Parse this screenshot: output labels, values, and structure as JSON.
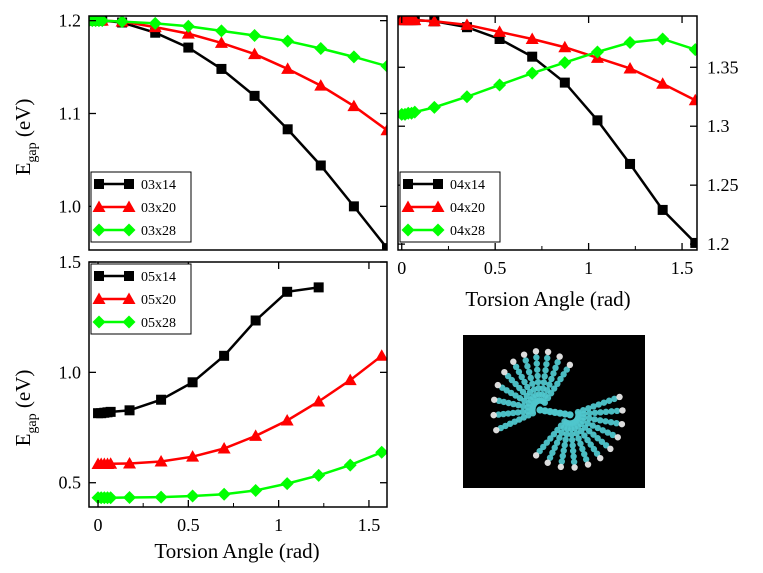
{
  "chart_data": [
    {
      "id": "p1",
      "type": "line",
      "ylabel": {
        "main": "E",
        "sub": "gap",
        "unit": " (eV)"
      },
      "xlabel": "",
      "xlim": [
        0,
        1.5708
      ],
      "ylim": [
        0.953,
        1.205
      ],
      "xticks": [],
      "yticks": [
        {
          "v": 1.0,
          "t": "1.0"
        },
        {
          "v": 1.1,
          "t": "1.1"
        },
        {
          "v": 1.2,
          "t": "1.2"
        }
      ],
      "legend_position": "bottom-left",
      "series": [
        {
          "name": "03x14",
          "color": "#000000",
          "marker": "square",
          "x": [
            0,
            0.0175,
            0.0349,
            0.0524,
            0.0698,
            0.1745,
            0.3491,
            0.5236,
            0.6981,
            0.8727,
            1.0472,
            1.2217,
            1.3963,
            1.5708
          ],
          "y": [
            1.2,
            1.2,
            1.2,
            1.2,
            1.2,
            1.198,
            1.187,
            1.171,
            1.148,
            1.119,
            1.083,
            1.044,
            1.0,
            0.955
          ]
        },
        {
          "name": "03x20",
          "color": "#ff0000",
          "marker": "triangle",
          "x": [
            0,
            0.0175,
            0.0349,
            0.0524,
            0.0698,
            0.1745,
            0.3491,
            0.5236,
            0.6981,
            0.8727,
            1.0472,
            1.2217,
            1.3963,
            1.5708
          ],
          "y": [
            1.2,
            1.2,
            1.2,
            1.2,
            1.2,
            1.199,
            1.193,
            1.186,
            1.176,
            1.164,
            1.148,
            1.13,
            1.108,
            1.082
          ]
        },
        {
          "name": "03x28",
          "color": "#00ff00",
          "marker": "diamond",
          "x": [
            0,
            0.0175,
            0.0349,
            0.0524,
            0.0698,
            0.1745,
            0.3491,
            0.5236,
            0.6981,
            0.8727,
            1.0472,
            1.2217,
            1.3963,
            1.5708
          ],
          "y": [
            1.2,
            1.2,
            1.2,
            1.2,
            1.2,
            1.199,
            1.197,
            1.194,
            1.189,
            1.184,
            1.178,
            1.17,
            1.161,
            1.151
          ]
        }
      ]
    },
    {
      "id": "p2",
      "type": "line",
      "ylabel": null,
      "xlabel": "Torsion Angle (rad)",
      "xlim": [
        -0.02,
        1.58
      ],
      "ylim": [
        1.195,
        1.3935
      ],
      "xticks": [
        {
          "v": 0,
          "t": "0"
        },
        {
          "v": 0.5,
          "t": "0.5"
        },
        {
          "v": 1,
          "t": "1"
        },
        {
          "v": 1.5,
          "t": "1.5"
        }
      ],
      "yticks": [
        {
          "v": 1.2,
          "t": "1.2"
        },
        {
          "v": 1.25,
          "t": "1.25"
        },
        {
          "v": 1.3,
          "t": "1.3"
        },
        {
          "v": 1.35,
          "t": "1.35"
        }
      ],
      "ytick_side": "right",
      "legend_position": "bottom-left",
      "series": [
        {
          "name": "04x14",
          "color": "#000000",
          "marker": "square",
          "x": [
            0,
            0.0175,
            0.0349,
            0.0524,
            0.0698,
            0.1745,
            0.3491,
            0.5236,
            0.6981,
            0.8727,
            1.0472,
            1.2217,
            1.3963,
            1.5708
          ],
          "y": [
            1.39,
            1.39,
            1.39,
            1.39,
            1.39,
            1.389,
            1.384,
            1.374,
            1.359,
            1.337,
            1.305,
            1.268,
            1.229,
            1.201
          ]
        },
        {
          "name": "04x20",
          "color": "#ff0000",
          "marker": "triangle",
          "x": [
            0,
            0.0175,
            0.0349,
            0.0524,
            0.0698,
            0.1745,
            0.3491,
            0.5236,
            0.6981,
            0.8727,
            1.0472,
            1.2217,
            1.3963,
            1.5708
          ],
          "y": [
            1.39,
            1.39,
            1.39,
            1.39,
            1.39,
            1.389,
            1.386,
            1.38,
            1.374,
            1.367,
            1.358,
            1.349,
            1.336,
            1.322
          ]
        },
        {
          "name": "04x28",
          "color": "#00ff00",
          "marker": "diamond",
          "x": [
            0,
            0.0175,
            0.0349,
            0.0524,
            0.0698,
            0.1745,
            0.3491,
            0.5236,
            0.6981,
            0.8727,
            1.0472,
            1.2217,
            1.3963,
            1.5708
          ],
          "y": [
            1.31,
            1.31,
            1.311,
            1.311,
            1.312,
            1.316,
            1.325,
            1.335,
            1.345,
            1.354,
            1.363,
            1.371,
            1.374,
            1.365
          ]
        }
      ]
    },
    {
      "id": "p3",
      "type": "line",
      "ylabel": {
        "main": "E",
        "sub": "gap",
        "unit": " (eV)"
      },
      "xlabel": "Torsion Angle (rad)",
      "xlim": [
        -0.05,
        1.6
      ],
      "ylim": [
        0.39,
        1.5
      ],
      "xticks": [
        {
          "v": 0,
          "t": "0"
        },
        {
          "v": 0.5,
          "t": "0.5"
        },
        {
          "v": 1,
          "t": "1"
        },
        {
          "v": 1.5,
          "t": "1.5"
        }
      ],
      "yticks": [
        {
          "v": 0.5,
          "t": "0.5"
        },
        {
          "v": 1.0,
          "t": "1.0"
        },
        {
          "v": 1.5,
          "t": "1.5"
        }
      ],
      "legend_position": "top-left",
      "series": [
        {
          "name": "05x14",
          "color": "#000000",
          "marker": "square",
          "x": [
            0,
            0.0175,
            0.0349,
            0.0524,
            0.0698,
            0.1745,
            0.3491,
            0.5236,
            0.6981,
            0.8727,
            1.0472,
            1.2217
          ],
          "y": [
            0.815,
            0.815,
            0.817,
            0.819,
            0.821,
            0.828,
            0.876,
            0.955,
            1.075,
            1.235,
            1.365,
            1.385
          ]
        },
        {
          "name": "05x20",
          "color": "#ff0000",
          "marker": "triangle",
          "x": [
            0,
            0.0175,
            0.0349,
            0.0524,
            0.0698,
            0.1745,
            0.3491,
            0.5236,
            0.6981,
            0.8727,
            1.0472,
            1.2217,
            1.3963,
            1.5708
          ],
          "y": [
            0.585,
            0.585,
            0.585,
            0.585,
            0.586,
            0.587,
            0.596,
            0.618,
            0.655,
            0.712,
            0.782,
            0.868,
            0.965,
            1.075
          ]
        },
        {
          "name": "05x28",
          "color": "#00ff00",
          "marker": "diamond",
          "x": [
            0,
            0.0175,
            0.0349,
            0.0524,
            0.0698,
            0.1745,
            0.3491,
            0.5236,
            0.6981,
            0.8727,
            1.0472,
            1.2217,
            1.3963,
            1.5708
          ],
          "y": [
            0.432,
            0.432,
            0.432,
            0.432,
            0.432,
            0.433,
            0.435,
            0.44,
            0.448,
            0.465,
            0.496,
            0.533,
            0.58,
            0.638
          ]
        }
      ]
    }
  ],
  "inset": {
    "icon": "twisted-nanoribbon-molecule-render",
    "background": "#000000",
    "atom_color": "#4fc6cc",
    "hydrogen_color": "#e8e8e8"
  }
}
